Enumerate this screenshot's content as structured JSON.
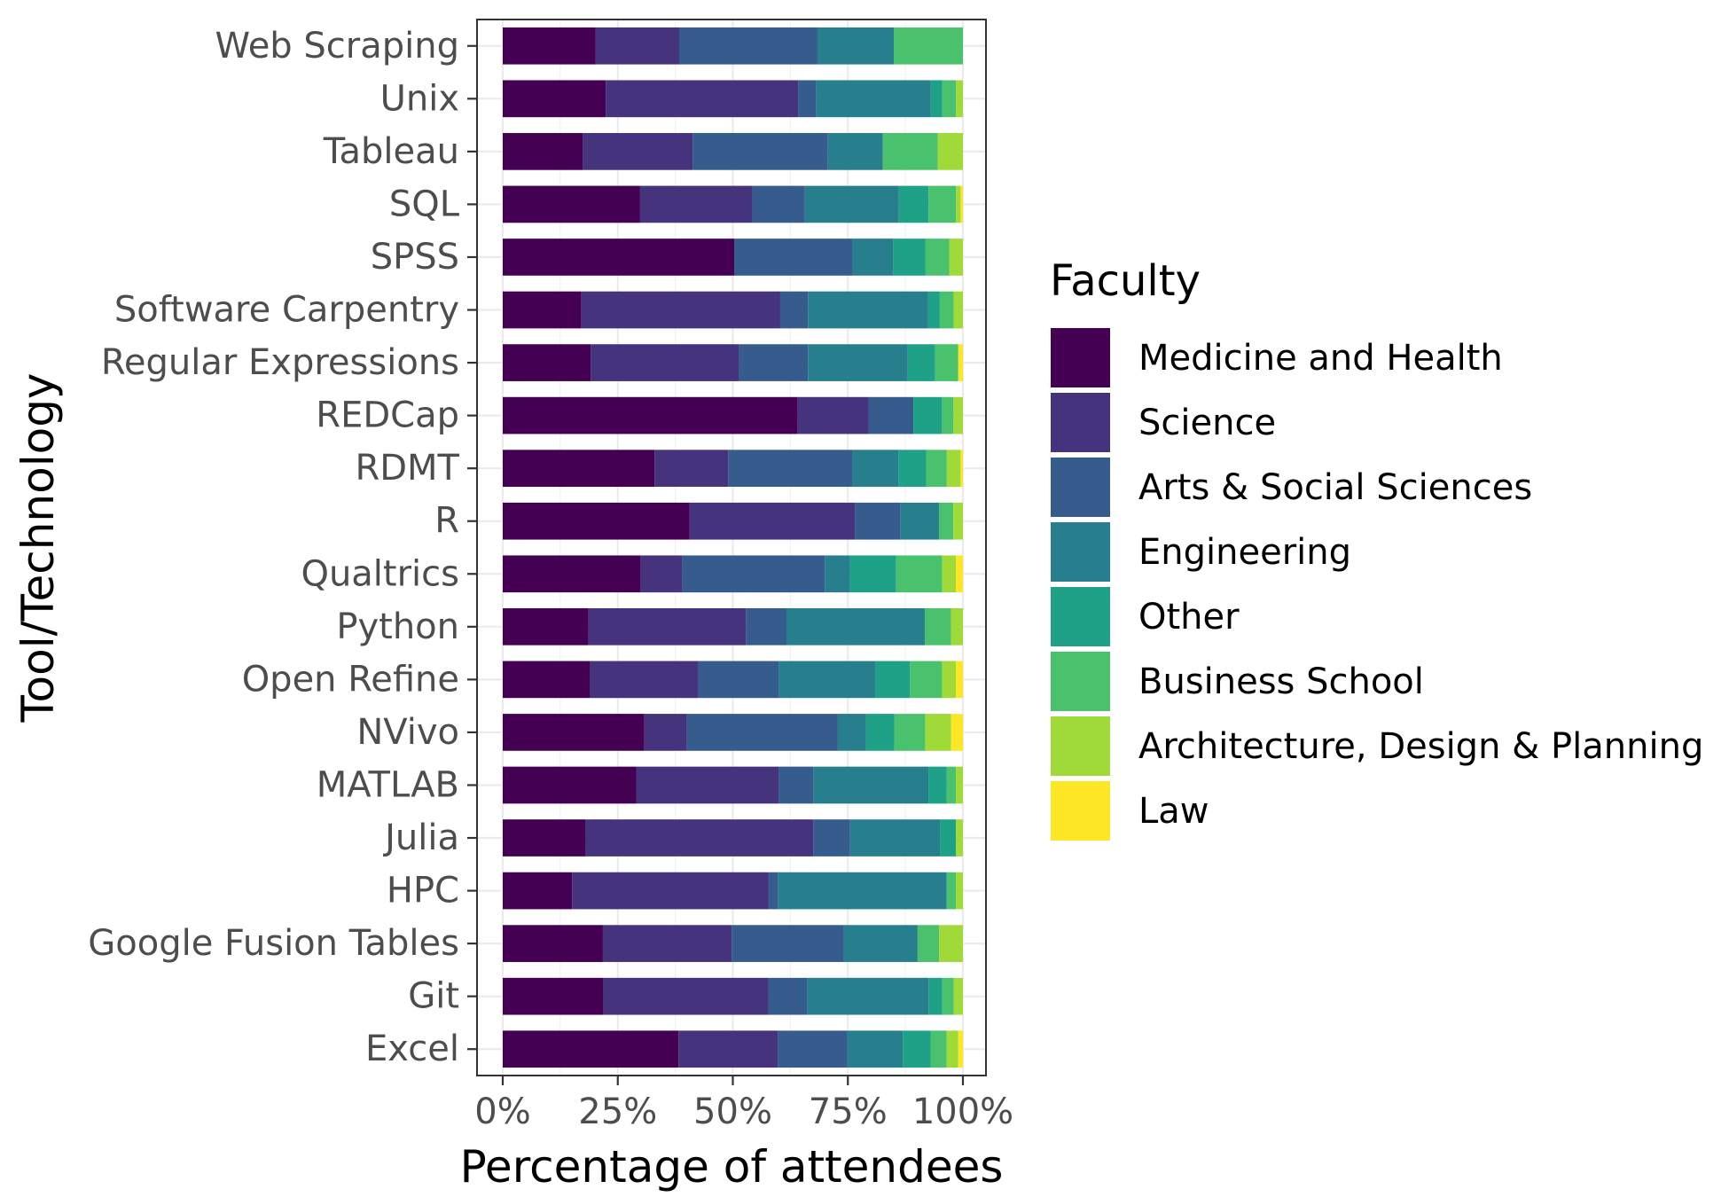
{
  "chart_data": {
    "type": "bar",
    "orientation": "horizontal",
    "stacked": true,
    "normalized": true,
    "xlabel": "Percentage of attendees",
    "ylabel": "Tool/Technology",
    "xlim": [
      0,
      100
    ],
    "x_ticks": [
      "0%",
      "25%",
      "50%",
      "75%",
      "100%"
    ],
    "grid": true,
    "legend_title": "Faculty",
    "legend_position": "right",
    "categories": [
      "Web Scraping",
      "Unix",
      "Tableau",
      "SQL",
      "SPSS",
      "Software Carpentry",
      "Regular Expressions",
      "REDCap",
      "RDMT",
      "R",
      "Qualtrics",
      "Python",
      "Open Refine",
      "NVivo",
      "MATLAB",
      "Julia",
      "HPC",
      "Google Fusion Tables",
      "Git",
      "Excel"
    ],
    "series": [
      {
        "name": "Medicine and Health",
        "color": "#440154",
        "values": [
          19.5,
          22.5,
          17.5,
          30,
          43,
          17,
          19,
          62.5,
          33,
          39,
          30,
          18,
          19,
          30,
          29,
          18,
          15,
          21,
          22,
          38
        ]
      },
      {
        "name": "Science",
        "color": "#46337E",
        "values": [
          17.5,
          42,
          24,
          24.5,
          0,
          43,
          32,
          15,
          16,
          34.5,
          9,
          33,
          23.5,
          9,
          31,
          49.5,
          42.5,
          27,
          36,
          21.5
        ]
      },
      {
        "name": "Arts & Social Sciences",
        "color": "#365C8D",
        "values": [
          29,
          4,
          29.5,
          11.5,
          22,
          6,
          15,
          9.5,
          27,
          9.5,
          31,
          8.5,
          17.5,
          32,
          7.5,
          8,
          2,
          23.5,
          8.5,
          15
        ]
      },
      {
        "name": "Engineering",
        "color": "#277F8E",
        "values": [
          16,
          25,
          12,
          20.5,
          7.5,
          26,
          21.5,
          0,
          10,
          8,
          5.5,
          29,
          21,
          6,
          25,
          19.5,
          36.5,
          15.5,
          26.5,
          12
        ]
      },
      {
        "name": "Other",
        "color": "#1FA187",
        "values": [
          0,
          2.5,
          0,
          6.5,
          6,
          2.5,
          6,
          6,
          6,
          0,
          10,
          0,
          7.5,
          6,
          4,
          3.5,
          0,
          0,
          3,
          6
        ]
      },
      {
        "name": "Business School",
        "color": "#4AC16D",
        "values": [
          14.5,
          3,
          12,
          6,
          4.5,
          3,
          5,
          2.5,
          4.5,
          3,
          10,
          5.5,
          7,
          6.5,
          2,
          0,
          2,
          4.5,
          2.5,
          3.5
        ]
      },
      {
        "name": "Architecture, Design & Planning",
        "color": "#A0DA39",
        "values": [
          0,
          1.5,
          5.5,
          1,
          2.5,
          2,
          0,
          2,
          3,
          2,
          3,
          2.5,
          3,
          5.5,
          1.5,
          1.5,
          1.5,
          5,
          2,
          2.5
        ]
      },
      {
        "name": "Law",
        "color": "#FDE725",
        "values": [
          0,
          0,
          0,
          0.5,
          0,
          0,
          1,
          0,
          0.5,
          0,
          1.5,
          0,
          1.5,
          2.5,
          0,
          0,
          0,
          0,
          0,
          1
        ]
      }
    ]
  }
}
